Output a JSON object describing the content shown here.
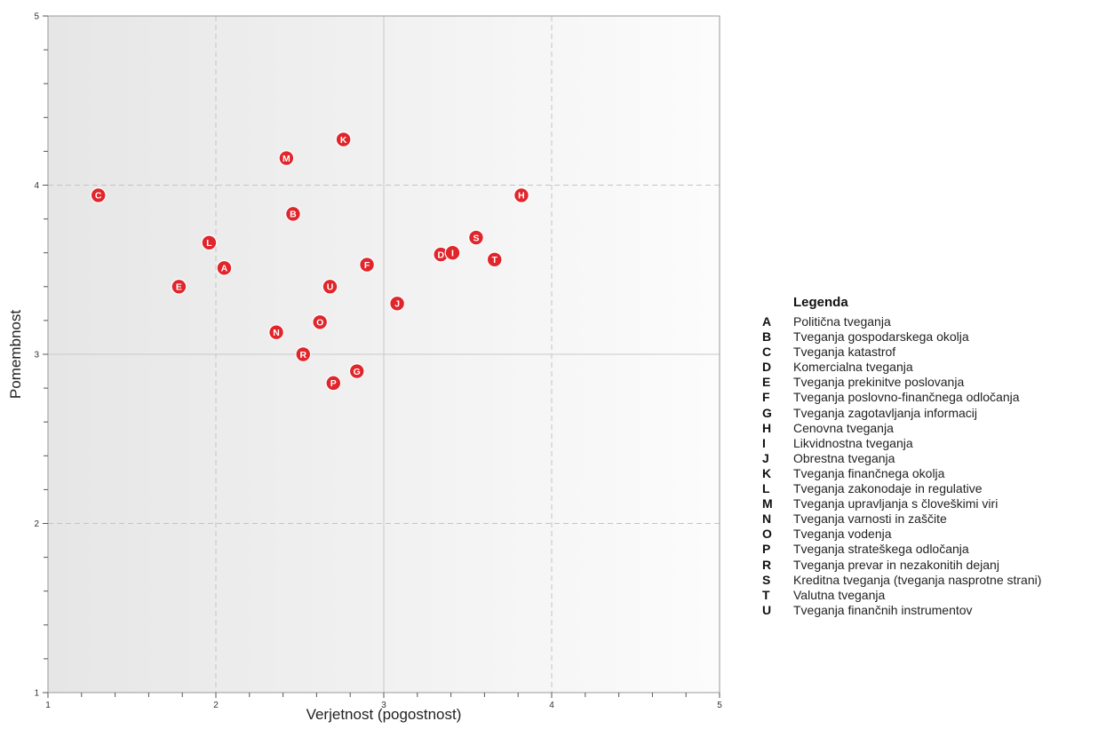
{
  "chart_data": {
    "type": "scatter",
    "title": "",
    "xlabel": "Verjetnost (pogostnost)",
    "ylabel": "Pomembnost",
    "xlim": [
      1,
      5
    ],
    "ylim": [
      1,
      5
    ],
    "x_ticks": [
      "1",
      "2",
      "3",
      "4",
      "5"
    ],
    "y_ticks": [
      "1",
      "2",
      "3",
      "4",
      "5"
    ],
    "grid": true,
    "point_color": "#e0252b",
    "points": [
      {
        "code": "A",
        "x": 2.05,
        "y": 3.51
      },
      {
        "code": "B",
        "x": 2.46,
        "y": 3.83
      },
      {
        "code": "C",
        "x": 1.3,
        "y": 3.94
      },
      {
        "code": "D",
        "x": 3.34,
        "y": 3.59
      },
      {
        "code": "E",
        "x": 1.78,
        "y": 3.4
      },
      {
        "code": "F",
        "x": 2.9,
        "y": 3.53
      },
      {
        "code": "G",
        "x": 2.84,
        "y": 2.9
      },
      {
        "code": "H",
        "x": 3.82,
        "y": 3.94
      },
      {
        "code": "I",
        "x": 3.41,
        "y": 3.6
      },
      {
        "code": "J",
        "x": 3.08,
        "y": 3.3
      },
      {
        "code": "K",
        "x": 2.76,
        "y": 4.27
      },
      {
        "code": "L",
        "x": 1.96,
        "y": 3.66
      },
      {
        "code": "M",
        "x": 2.42,
        "y": 4.16
      },
      {
        "code": "N",
        "x": 2.36,
        "y": 3.13
      },
      {
        "code": "O",
        "x": 2.62,
        "y": 3.19
      },
      {
        "code": "P",
        "x": 2.7,
        "y": 2.83
      },
      {
        "code": "R",
        "x": 2.52,
        "y": 3.0
      },
      {
        "code": "S",
        "x": 3.55,
        "y": 3.69
      },
      {
        "code": "T",
        "x": 3.66,
        "y": 3.56
      },
      {
        "code": "U",
        "x": 2.68,
        "y": 3.4
      }
    ],
    "legend": {
      "title": "Legenda",
      "placement": "right",
      "entries": [
        {
          "code": "A",
          "label": "Politična tveganja"
        },
        {
          "code": "B",
          "label": "Tveganja gospodarskega okolja"
        },
        {
          "code": "C",
          "label": "Tveganja katastrof"
        },
        {
          "code": "D",
          "label": "Komercialna tveganja"
        },
        {
          "code": "E",
          "label": "Tveganja prekinitve poslovanja"
        },
        {
          "code": "F",
          "label": "Tveganja poslovno-finančnega odločanja"
        },
        {
          "code": "G",
          "label": "Tveganja zagotavljanja informacij"
        },
        {
          "code": "H",
          "label": "Cenovna tveganja"
        },
        {
          "code": "I",
          "label": "Likvidnostna tveganja"
        },
        {
          "code": "J",
          "label": "Obrestna tveganja"
        },
        {
          "code": "K",
          "label": "Tveganja finančnega okolja"
        },
        {
          "code": "L",
          "label": "Tveganja zakonodaje in regulative"
        },
        {
          "code": "M",
          "label": "Tveganja upravljanja s človeškimi viri"
        },
        {
          "code": "N",
          "label": "Tveganja varnosti in zaščite"
        },
        {
          "code": "O",
          "label": "Tveganja vodenja"
        },
        {
          "code": "P",
          "label": "Tveganja strateškega odločanja"
        },
        {
          "code": "R",
          "label": "Tveganja prevar in nezakonitih dejanj"
        },
        {
          "code": "S",
          "label": "Kreditna tveganja (tveganja nasprotne strani)"
        },
        {
          "code": "T",
          "label": "Valutna tveganja"
        },
        {
          "code": "U",
          "label": "Tveganja finančnih instrumentov"
        }
      ]
    }
  }
}
